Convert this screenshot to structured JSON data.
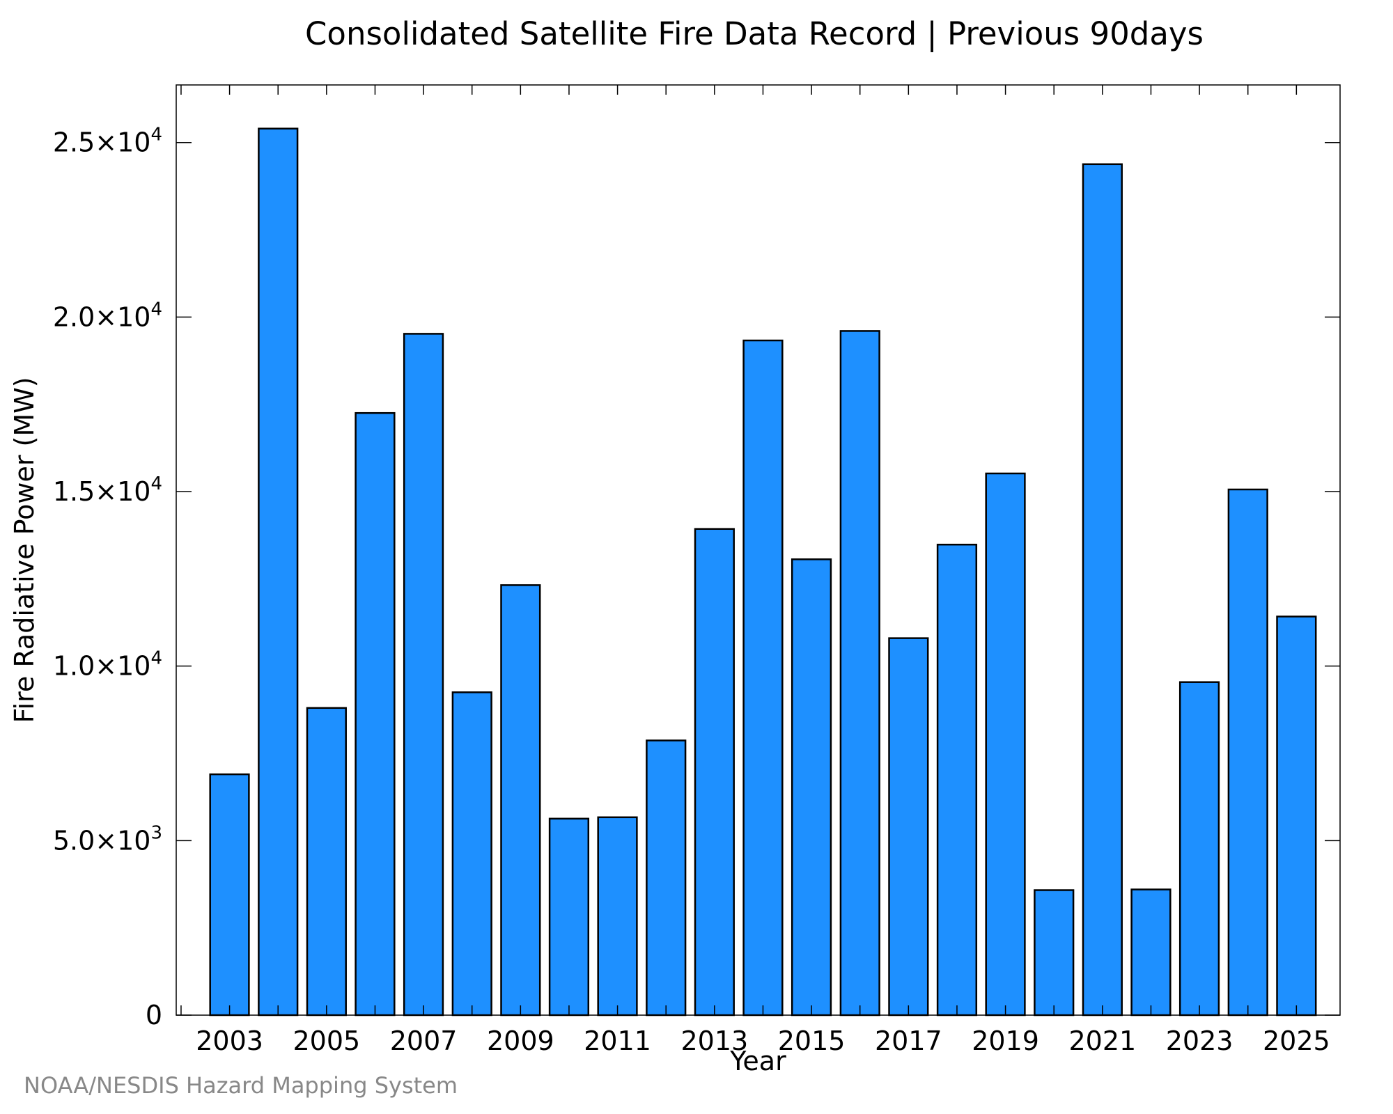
{
  "chart_data": {
    "type": "bar",
    "title": "Consolidated Satellite Fire Data Record | Previous 90days",
    "xlabel": "Year",
    "ylabel": "Fire Radiative Power (MW)",
    "credit": "NOAA/NESDIS Hazard Mapping System",
    "categories": [
      2003,
      2004,
      2005,
      2006,
      2007,
      2008,
      2009,
      2010,
      2011,
      2012,
      2013,
      2014,
      2015,
      2016,
      2017,
      2018,
      2019,
      2020,
      2021,
      2022,
      2023,
      2024,
      2025
    ],
    "values": [
      6900,
      25400,
      8800,
      17250,
      19520,
      9250,
      12320,
      5630,
      5670,
      7870,
      13930,
      19330,
      13060,
      19600,
      10800,
      13480,
      15520,
      3580,
      24380,
      3600,
      9540,
      15060,
      11420
    ],
    "ylim": [
      0,
      26650
    ],
    "xlim": [
      2001.9,
      2025.9
    ],
    "xticks": [
      "2003",
      "2005",
      "2007",
      "2009",
      "2011",
      "2013",
      "2015",
      "2017",
      "2019",
      "2021",
      "2023",
      "2025"
    ],
    "yticks": [
      {
        "value": 0,
        "mantissa": "0",
        "exp": ""
      },
      {
        "value": 5000,
        "mantissa": "5.0×10",
        "exp": "3"
      },
      {
        "value": 10000,
        "mantissa": "1.0×10",
        "exp": "4"
      },
      {
        "value": 15000,
        "mantissa": "1.5×10",
        "exp": "4"
      },
      {
        "value": 20000,
        "mantissa": "2.0×10",
        "exp": "4"
      },
      {
        "value": 25000,
        "mantissa": "2.5×10",
        "exp": "4"
      }
    ],
    "bar_color": "#1e90ff",
    "edge_color": "#000000",
    "grid": false
  }
}
